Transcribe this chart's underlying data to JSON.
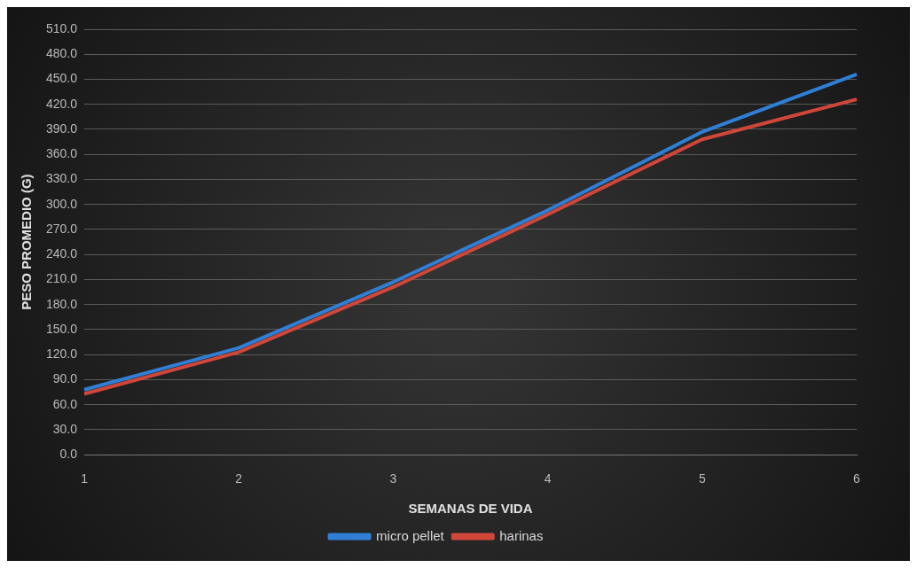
{
  "chart_data": {
    "type": "line",
    "xlabel": "SEMANAS DE VIDA",
    "ylabel": "PESO PROMEDIO (G)",
    "categories": [
      "1",
      "2",
      "3",
      "4",
      "5",
      "6"
    ],
    "series": [
      {
        "name": "micro pellet",
        "color": "#2f7fd6",
        "values": [
          78,
          128,
          207,
          293,
          387,
          456
        ]
      },
      {
        "name": "harinas",
        "color": "#d0473a",
        "values": [
          73,
          123,
          201,
          288,
          378,
          426
        ]
      }
    ],
    "ylim": [
      0,
      510
    ],
    "yticks": [
      {
        "value": 0,
        "label": "0.0"
      },
      {
        "value": 30,
        "label": "30.0"
      },
      {
        "value": 60,
        "label": "60.0"
      },
      {
        "value": 90,
        "label": "90.0"
      },
      {
        "value": 120,
        "label": "120.0"
      },
      {
        "value": 150,
        "label": "150.0"
      },
      {
        "value": 180,
        "label": "180.0"
      },
      {
        "value": 210,
        "label": "210.0"
      },
      {
        "value": 240,
        "label": "240.0"
      },
      {
        "value": 270,
        "label": "270.0"
      },
      {
        "value": 300,
        "label": "300.0"
      },
      {
        "value": 330,
        "label": "330.0"
      },
      {
        "value": 360,
        "label": "360.0"
      },
      {
        "value": 390,
        "label": "390.0"
      },
      {
        "value": 420,
        "label": "420.0"
      },
      {
        "value": 450,
        "label": "450.0"
      },
      {
        "value": 480,
        "label": "480.0"
      },
      {
        "value": 510,
        "label": "510.0"
      }
    ],
    "grid": "y",
    "legend": "bottom",
    "marker": "none",
    "line_style": "solid"
  }
}
